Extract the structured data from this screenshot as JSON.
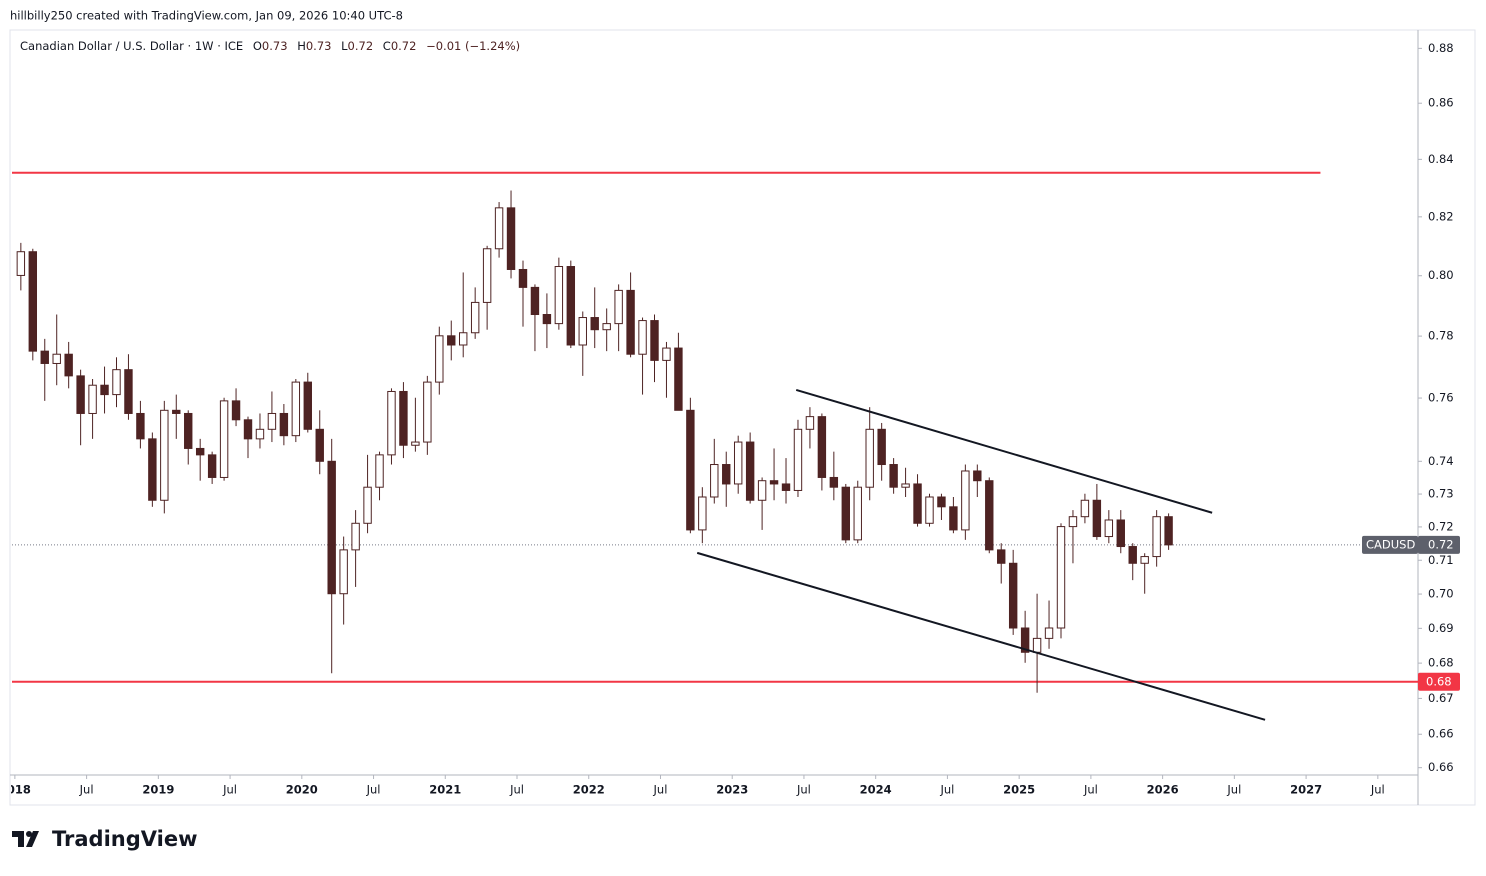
{
  "header": "hillbilly250 created with TradingView.com, Jan 09, 2026 10:40 UTC-8",
  "logo": "TradingView",
  "chart_data": {
    "type": "candlestick",
    "legend": {
      "symbol": "Canadian Dollar / U.S. Dollar · 1W · ICE",
      "ohlc": [
        {
          "label": "O",
          "value": "0.73"
        },
        {
          "label": "H",
          "value": "0.73"
        },
        {
          "label": "L",
          "value": "0.72"
        },
        {
          "label": "C",
          "value": "0.72"
        }
      ],
      "change": "−0.01 (−1.24%)"
    },
    "log_scale": true,
    "up_color": "#ffffff",
    "down_color": "#4e2323",
    "wick_color": "#4e2323",
    "x": [
      "2018-01",
      "2018-02",
      "2018-03",
      "2018-04",
      "2018-05",
      "2018-06",
      "2018-07",
      "2018-08",
      "2018-09",
      "2018-10",
      "2018-11",
      "2018-12",
      "2019-01",
      "2019-02",
      "2019-03",
      "2019-04",
      "2019-05",
      "2019-06",
      "2019-07",
      "2019-08",
      "2019-09",
      "2019-10",
      "2019-11",
      "2019-12",
      "2020-01",
      "2020-02",
      "2020-03",
      "2020-04",
      "2020-05",
      "2020-06",
      "2020-07",
      "2020-08",
      "2020-09",
      "2020-10",
      "2020-11",
      "2020-12",
      "2021-01",
      "2021-02",
      "2021-03",
      "2021-04",
      "2021-05",
      "2021-06",
      "2021-07",
      "2021-08",
      "2021-09",
      "2021-10",
      "2021-11",
      "2021-12",
      "2022-01",
      "2022-02",
      "2022-03",
      "2022-04",
      "2022-05",
      "2022-06",
      "2022-07",
      "2022-08",
      "2022-09",
      "2022-10",
      "2022-11",
      "2022-12",
      "2023-01",
      "2023-02",
      "2023-03",
      "2023-04",
      "2023-05",
      "2023-06",
      "2023-07",
      "2023-08",
      "2023-09",
      "2023-10",
      "2023-11",
      "2023-12",
      "2024-01",
      "2024-02",
      "2024-03",
      "2024-04",
      "2024-05",
      "2024-06",
      "2024-07",
      "2024-08",
      "2024-09",
      "2024-10",
      "2024-11",
      "2024-12",
      "2025-01",
      "2025-02",
      "2025-03",
      "2025-04",
      "2025-05",
      "2025-06",
      "2025-07",
      "2025-08",
      "2025-09",
      "2025-10",
      "2025-11",
      "2025-12",
      "2026-01"
    ],
    "open": [
      0.805,
      0.813,
      0.78,
      0.776,
      0.779,
      0.772,
      0.76,
      0.769,
      0.766,
      0.774,
      0.76,
      0.752,
      0.733,
      0.761,
      0.76,
      0.749,
      0.747,
      0.74,
      0.764,
      0.758,
      0.752,
      0.755,
      0.76,
      0.753,
      0.77,
      0.755,
      0.745,
      0.705,
      0.718,
      0.726,
      0.737,
      0.747,
      0.767,
      0.75,
      0.751,
      0.77,
      0.785,
      0.782,
      0.786,
      0.796,
      0.814,
      0.828,
      0.807,
      0.801,
      0.792,
      0.789,
      0.808,
      0.782,
      0.791,
      0.787,
      0.789,
      0.8,
      0.779,
      0.79,
      0.777,
      0.781,
      0.761,
      0.724,
      0.734,
      0.744,
      0.738,
      0.751,
      0.733,
      0.739,
      0.738,
      0.736,
      0.755,
      0.759,
      0.74,
      0.737,
      0.721,
      0.737,
      0.755,
      0.744,
      0.737,
      0.738,
      0.726,
      0.734,
      0.731,
      0.724,
      0.742,
      0.739,
      0.718,
      0.714,
      0.695,
      0.688,
      0.692,
      0.695,
      0.725,
      0.728,
      0.733,
      0.722,
      0.727,
      0.719,
      0.714,
      0.716,
      0.728
    ],
    "high": [
      0.816,
      0.814,
      0.784,
      0.792,
      0.783,
      0.774,
      0.771,
      0.775,
      0.778,
      0.779,
      0.764,
      0.754,
      0.764,
      0.766,
      0.761,
      0.752,
      0.748,
      0.765,
      0.768,
      0.759,
      0.76,
      0.767,
      0.763,
      0.771,
      0.773,
      0.761,
      0.752,
      0.722,
      0.73,
      0.747,
      0.748,
      0.768,
      0.77,
      0.765,
      0.772,
      0.788,
      0.79,
      0.806,
      0.801,
      0.815,
      0.83,
      0.834,
      0.81,
      0.802,
      0.799,
      0.811,
      0.81,
      0.793,
      0.801,
      0.794,
      0.802,
      0.806,
      0.791,
      0.792,
      0.783,
      0.786,
      0.765,
      0.737,
      0.752,
      0.748,
      0.753,
      0.754,
      0.74,
      0.749,
      0.746,
      0.758,
      0.762,
      0.76,
      0.748,
      0.738,
      0.739,
      0.762,
      0.757,
      0.746,
      0.743,
      0.741,
      0.735,
      0.735,
      0.734,
      0.744,
      0.744,
      0.74,
      0.72,
      0.718,
      0.7,
      0.705,
      0.703,
      0.726,
      0.73,
      0.735,
      0.738,
      0.73,
      0.73,
      0.72,
      0.717,
      0.73,
      0.729
    ],
    "low": [
      0.8,
      0.777,
      0.764,
      0.769,
      0.768,
      0.75,
      0.752,
      0.76,
      0.762,
      0.758,
      0.749,
      0.731,
      0.729,
      0.752,
      0.744,
      0.739,
      0.738,
      0.739,
      0.756,
      0.746,
      0.749,
      0.751,
      0.75,
      0.751,
      0.754,
      0.741,
      0.682,
      0.696,
      0.707,
      0.723,
      0.733,
      0.744,
      0.746,
      0.748,
      0.747,
      0.766,
      0.777,
      0.778,
      0.784,
      0.787,
      0.811,
      0.804,
      0.788,
      0.78,
      0.781,
      0.787,
      0.781,
      0.772,
      0.781,
      0.78,
      0.78,
      0.778,
      0.766,
      0.77,
      0.765,
      0.761,
      0.723,
      0.72,
      0.732,
      0.731,
      0.735,
      0.732,
      0.724,
      0.733,
      0.732,
      0.734,
      0.749,
      0.736,
      0.733,
      0.72,
      0.72,
      0.733,
      0.739,
      0.735,
      0.734,
      0.725,
      0.725,
      0.727,
      0.723,
      0.721,
      0.734,
      0.717,
      0.708,
      0.693,
      0.685,
      0.6765,
      0.689,
      0.692,
      0.714,
      0.726,
      0.721,
      0.72,
      0.717,
      0.709,
      0.705,
      0.713,
      0.718
    ],
    "close": [
      0.813,
      0.78,
      0.776,
      0.779,
      0.772,
      0.76,
      0.769,
      0.766,
      0.774,
      0.76,
      0.752,
      0.733,
      0.761,
      0.76,
      0.749,
      0.747,
      0.74,
      0.764,
      0.758,
      0.752,
      0.755,
      0.76,
      0.753,
      0.77,
      0.755,
      0.745,
      0.705,
      0.718,
      0.726,
      0.737,
      0.747,
      0.767,
      0.75,
      0.751,
      0.77,
      0.785,
      0.782,
      0.786,
      0.796,
      0.814,
      0.828,
      0.807,
      0.801,
      0.792,
      0.789,
      0.808,
      0.782,
      0.791,
      0.787,
      0.789,
      0.8,
      0.779,
      0.79,
      0.777,
      0.781,
      0.761,
      0.724,
      0.734,
      0.744,
      0.738,
      0.751,
      0.733,
      0.739,
      0.738,
      0.736,
      0.755,
      0.759,
      0.74,
      0.737,
      0.721,
      0.737,
      0.755,
      0.744,
      0.737,
      0.738,
      0.726,
      0.734,
      0.731,
      0.724,
      0.742,
      0.739,
      0.718,
      0.714,
      0.695,
      0.688,
      0.692,
      0.695,
      0.725,
      0.728,
      0.733,
      0.722,
      0.727,
      0.719,
      0.714,
      0.716,
      0.728,
      0.7195
    ],
    "xlim": [
      2017.98,
      2027.78
    ],
    "xticks": [
      {
        "value": 2018,
        "label": "2018"
      },
      {
        "value": 2018.5,
        "label": "Jul"
      },
      {
        "value": 2019,
        "label": "2019"
      },
      {
        "value": 2019.5,
        "label": "Jul"
      },
      {
        "value": 2020,
        "label": "2020"
      },
      {
        "value": 2020.5,
        "label": "Jul"
      },
      {
        "value": 2021,
        "label": "2021"
      },
      {
        "value": 2021.5,
        "label": "Jul"
      },
      {
        "value": 2022,
        "label": "2022"
      },
      {
        "value": 2022.5,
        "label": "Jul"
      },
      {
        "value": 2023,
        "label": "2023"
      },
      {
        "value": 2023.5,
        "label": "Jul"
      },
      {
        "value": 2024,
        "label": "2024"
      },
      {
        "value": 2024.5,
        "label": "Jul"
      },
      {
        "value": 2025,
        "label": "2025"
      },
      {
        "value": 2025.5,
        "label": "Jul"
      },
      {
        "value": 2026,
        "label": "2026"
      },
      {
        "value": 2026.5,
        "label": "Jul"
      },
      {
        "value": 2027,
        "label": "2027"
      },
      {
        "value": 2027.5,
        "label": "Jul"
      }
    ],
    "ylim": [
      0.6537,
      0.8917
    ],
    "yticks": [
      {
        "value": 0.8849,
        "label": "0.88"
      },
      {
        "value": 0.8649,
        "label": "0.86"
      },
      {
        "value": 0.8449,
        "label": "0.84"
      },
      {
        "value": 0.8249,
        "label": "0.82"
      },
      {
        "value": 0.8049,
        "label": "0.80"
      },
      {
        "value": 0.7849,
        "label": "0.78"
      },
      {
        "value": 0.7649,
        "label": "0.76"
      },
      {
        "value": 0.745,
        "label": "0.74"
      },
      {
        "value": 0.7349,
        "label": "0.73"
      },
      {
        "value": 0.7249,
        "label": "0.72"
      },
      {
        "value": 0.7149,
        "label": "0.71"
      },
      {
        "value": 0.7049,
        "label": "0.70"
      },
      {
        "value": 0.6949,
        "label": "0.69"
      },
      {
        "value": 0.6849,
        "label": "0.68"
      },
      {
        "value": 0.6749,
        "label": "0.67"
      },
      {
        "value": 0.6649,
        "label": "0.66"
      },
      {
        "value": 0.6557,
        "label": "0.66"
      }
    ],
    "hlines": [
      {
        "value": 0.8402,
        "color": "#f23645",
        "x": [
          2017.98,
          2027.1
        ]
      },
      {
        "value": 0.6796,
        "color": "#f23645",
        "label": "0.68"
      }
    ],
    "trendlines": [
      {
        "x": [
          2023.446,
          2026.345
        ],
        "y": [
          0.7675,
          0.7292
        ],
        "color": "#131722"
      },
      {
        "x": [
          2022.756,
          2026.714
        ],
        "y": [
          0.7171,
          0.6689
        ],
        "color": "#131722"
      }
    ],
    "last_price": {
      "name": "CADUSD",
      "value": 0.7195,
      "label": "0.72"
    }
  }
}
